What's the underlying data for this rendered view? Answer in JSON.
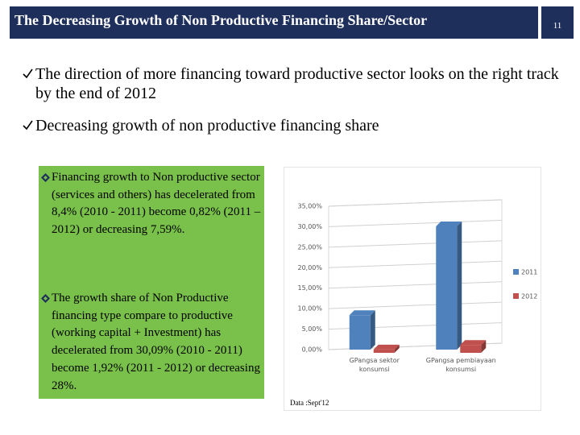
{
  "header": {
    "title": "The Decreasing Growth of Non Productive Financing Share/Sector",
    "page_number": "11"
  },
  "bullets": [
    "The direction of more financing toward productive sector looks on the right track by the end of 2012",
    "Decreasing growth of  non productive financing share"
  ],
  "box": {
    "items": [
      "Financing growth to Non productive sector  (services and others) has decelerated from  8,4% (2010 - 2011)  become  0,82% (2011 – 2012)  or decreasing 7,59%.",
      "The growth share of Non Productive financing  type compare to productive (working capital + Investment) has decelerated from 30,09% (2010 - 2011)  become 1,92% (2011 - 2012)  or decreasing 28%."
    ]
  },
  "chart_data": {
    "type": "bar",
    "categories": [
      "GPangsa sektor konsumsi",
      "GPangsa pembiayaan konsumsi"
    ],
    "series": [
      {
        "name": "2011",
        "color": "#4f81bd",
        "values": [
          8.4,
          30.09
        ]
      },
      {
        "name": "2012",
        "color": "#c0504d",
        "values": [
          0.82,
          1.92
        ]
      }
    ],
    "ylim": [
      0,
      35
    ],
    "yticks": [
      {
        "value": 0,
        "label": "0,00%"
      },
      {
        "value": 5,
        "label": "5,00%"
      },
      {
        "value": 10,
        "label": "10,00%"
      },
      {
        "value": 15,
        "label": "15,00%"
      },
      {
        "value": 20,
        "label": "20,00%"
      },
      {
        "value": 25,
        "label": "25,00%"
      },
      {
        "value": 30,
        "label": "30,00%"
      },
      {
        "value": 35,
        "label": "35,00%"
      }
    ],
    "grid": true,
    "legend": "right"
  },
  "source": "Data :Sept'12"
}
